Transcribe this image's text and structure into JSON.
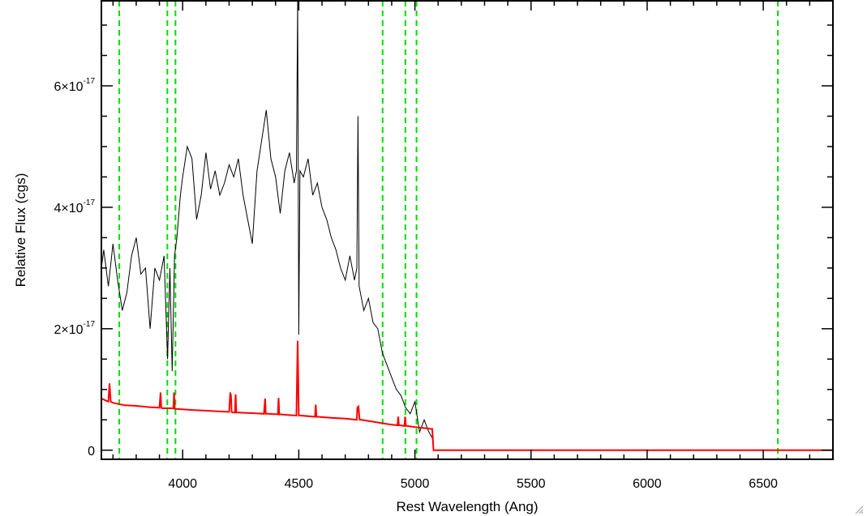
{
  "chart_data": {
    "type": "line",
    "title": "",
    "xlabel": "Rest Wavelength (Ang)",
    "ylabel": "Relative Flux (cgs)",
    "xlim": [
      3650,
      6800
    ],
    "ylim": [
      -1.5e-18,
      7.4e-17
    ],
    "x_ticks": [
      {
        "value": 4000,
        "label": "4000"
      },
      {
        "value": 4500,
        "label": "4500"
      },
      {
        "value": 5000,
        "label": "5000"
      },
      {
        "value": 5500,
        "label": "5500"
      },
      {
        "value": 6000,
        "label": "6000"
      },
      {
        "value": 6500,
        "label": "6500"
      }
    ],
    "y_ticks": [
      {
        "value": 0,
        "mantissa": "0",
        "exponent": ""
      },
      {
        "value": 2e-17,
        "mantissa": "2×10",
        "exponent": "-17"
      },
      {
        "value": 4e-17,
        "mantissa": "4×10",
        "exponent": "-17"
      },
      {
        "value": 6e-17,
        "mantissa": "6×10",
        "exponent": "-17"
      }
    ],
    "x_minor_step": 100,
    "y_minor_step": 5e-18,
    "grid": false,
    "series": [
      {
        "color": "#000000",
        "x": [
          3650,
          3660,
          3680,
          3700,
          3720,
          3740,
          3760,
          3780,
          3800,
          3820,
          3840,
          3860,
          3880,
          3900,
          3920,
          3935,
          3945,
          3955,
          3965,
          3975,
          3990,
          4000,
          4020,
          4040,
          4060,
          4080,
          4100,
          4120,
          4140,
          4160,
          4180,
          4200,
          4220,
          4240,
          4260,
          4280,
          4300,
          4320,
          4340,
          4360,
          4380,
          4400,
          4420,
          4440,
          4460,
          4480,
          4490,
          4495,
          4500,
          4505,
          4520,
          4540,
          4560,
          4580,
          4600,
          4620,
          4640,
          4660,
          4680,
          4700,
          4720,
          4740,
          4750,
          4755,
          4760,
          4780,
          4800,
          4820,
          4840,
          4860,
          4880,
          4900,
          4920,
          4940,
          4960,
          4980,
          5000,
          5020,
          5040,
          5060,
          5075,
          5080
        ],
        "y": [
          3e-17,
          3.3e-17,
          2.7e-17,
          3.4e-17,
          2.8e-17,
          2.3e-17,
          2.6e-17,
          3.2e-17,
          3.5e-17,
          2.9e-17,
          3e-17,
          2e-17,
          3e-17,
          2.8e-17,
          3.2e-17,
          1.5e-17,
          3e-17,
          1.3e-17,
          3.2e-17,
          3.5e-17,
          4.2e-17,
          4.5e-17,
          5e-17,
          4.8e-17,
          3.8e-17,
          4.2e-17,
          4.9e-17,
          4.3e-17,
          4.6e-17,
          4.2e-17,
          4.4e-17,
          4.7e-17,
          4.5e-17,
          4.8e-17,
          4.2e-17,
          3.8e-17,
          3.4e-17,
          4.6e-17,
          5.1e-17,
          5.6e-17,
          4.8e-17,
          4.5e-17,
          3.9e-17,
          4.6e-17,
          4.9e-17,
          4.4e-17,
          4.6e-17,
          7.4e-17,
          1.9e-17,
          4.6e-17,
          4.5e-17,
          4.8e-17,
          4.2e-17,
          4.4e-17,
          4e-17,
          3.8e-17,
          3.5e-17,
          3.3e-17,
          3e-17,
          2.8e-17,
          3.2e-17,
          2.8e-17,
          3e-17,
          5.5e-17,
          2.7e-17,
          2.3e-17,
          2.5e-17,
          2.1e-17,
          2e-17,
          1.6e-17,
          1.4e-17,
          1.2e-17,
          1e-17,
          9e-18,
          7e-18,
          6e-18,
          8e-18,
          3e-18,
          5e-18,
          3e-18,
          2e-18,
          1e-18
        ]
      },
      {
        "color": "#ff0000",
        "x": [
          3650,
          3680,
          3685,
          3690,
          3695,
          3700,
          3750,
          3800,
          3850,
          3900,
          3905,
          3908,
          3911,
          3915,
          3960,
          3963,
          3966,
          3970,
          4050,
          4100,
          4150,
          4200,
          4205,
          4208,
          4211,
          4215,
          4225,
          4228,
          4231,
          4235,
          4300,
          4350,
          4355,
          4358,
          4361,
          4365,
          4410,
          4413,
          4416,
          4420,
          4450,
          4490,
          4495,
          4500,
          4505,
          4510,
          4570,
          4573,
          4576,
          4580,
          4650,
          4700,
          4750,
          4752,
          4757,
          4762,
          4765,
          4770,
          4850,
          4900,
          4925,
          4928,
          4931,
          4935,
          4955,
          4958,
          4961,
          4965,
          5000,
          5050,
          5070,
          5075,
          5080,
          5500,
          6000,
          6500,
          6800
        ],
        "y": [
          8.5e-18,
          8e-18,
          1.1e-17,
          8e-18,
          7.9e-18,
          7.8e-18,
          7.4e-18,
          7.3e-18,
          7.1e-18,
          7e-18,
          9.5e-18,
          7e-18,
          6.9e-18,
          6.9e-18,
          6.9e-18,
          9.5e-18,
          6.8e-18,
          6.8e-18,
          6.6e-18,
          6.5e-18,
          6.4e-18,
          6.3e-18,
          9.5e-18,
          9e-18,
          6.3e-18,
          6.2e-18,
          6.2e-18,
          9.2e-18,
          6.2e-18,
          6.2e-18,
          6.1e-18,
          6e-18,
          8.5e-18,
          6e-18,
          6e-18,
          6e-18,
          5.9e-18,
          8.6e-18,
          5.9e-18,
          5.9e-18,
          5.8e-18,
          5.7e-18,
          1.8e-17,
          5.7e-18,
          5.7e-18,
          5.7e-18,
          5.5e-18,
          7.5e-18,
          5.5e-18,
          5.5e-18,
          5.3e-18,
          5.2e-18,
          5e-18,
          7e-18,
          7.2e-18,
          5e-18,
          5e-18,
          5e-18,
          4.5e-18,
          4.2e-18,
          4.1e-18,
          5.5e-18,
          4.1e-18,
          4.1e-18,
          4e-18,
          5.5e-18,
          4e-18,
          4e-18,
          3.8e-18,
          3.6e-18,
          3.5e-18,
          3.5e-18,
          0.0,
          0.0,
          0.0,
          0.0,
          0.0
        ]
      }
    ],
    "vlines": {
      "color": "#00dd00",
      "style": "dashed",
      "x": [
        3727,
        3934,
        3969,
        4861,
        4959,
        5007,
        6563
      ]
    }
  }
}
